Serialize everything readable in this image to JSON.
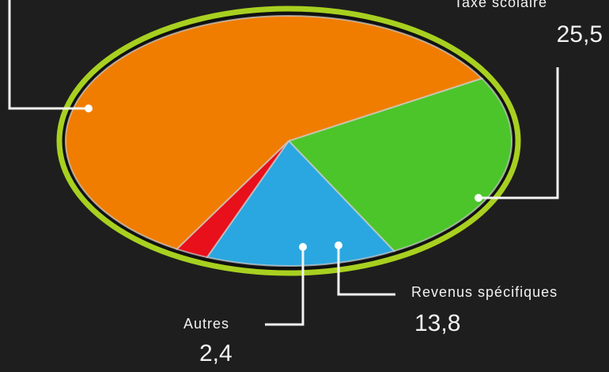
{
  "chart_data": {
    "type": "pie",
    "categories": [
      "Taxe scolaire",
      "Revenus spécifiques",
      "Autres",
      null
    ],
    "values": [
      25.5,
      13.8,
      2.4,
      58.3
    ],
    "value_labels": [
      "25,5",
      "13,8",
      "2,4",
      null
    ],
    "colors": [
      "#4cc52a",
      "#2aa7e0",
      "#e8101a",
      "#f07d00"
    ]
  }
}
